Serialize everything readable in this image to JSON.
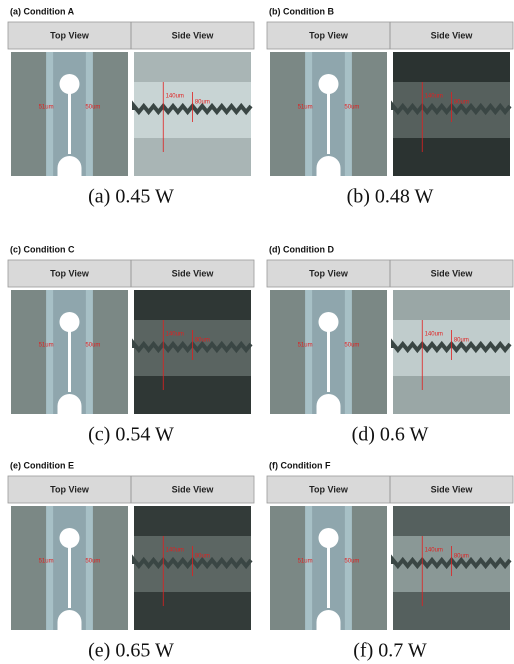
{
  "panels": [
    {
      "label": "(a) Condition  A",
      "top_header": "Top View",
      "side_header": "Side View",
      "top_labels": [
        "51um",
        "50um"
      ],
      "side_labels": [
        "140um",
        "80um"
      ],
      "caption": "(a)  0.45  W"
    },
    {
      "label": "(b) Condition  B",
      "top_header": "Top View",
      "side_header": "Side View",
      "top_labels": [
        "51um",
        "50um"
      ],
      "side_labels": [
        "140um",
        "80um"
      ],
      "caption": "(b)  0.48  W"
    },
    {
      "label": "(c) Condition  C",
      "top_header": "Top View",
      "side_header": "Side View",
      "top_labels": [
        "51um",
        "50um"
      ],
      "side_labels": [
        "140um",
        "80um"
      ],
      "caption": "(c)  0.54  W"
    },
    {
      "label": "(d) Condition  D",
      "top_header": "Top View",
      "side_header": "Side View",
      "top_labels": [
        "51um",
        "50um"
      ],
      "side_labels": [
        "140um",
        "80um"
      ],
      "caption": "(d)  0.6  W"
    },
    {
      "label": "(e) Condition  E",
      "top_header": "Top View",
      "side_header": "Side View",
      "top_labels": [
        "51um",
        "50um"
      ],
      "side_labels": [
        "140um",
        "80um"
      ],
      "caption": "(e)  0.65  W"
    },
    {
      "label": "(f) Condition  F",
      "top_header": "Top View",
      "side_header": "Side View",
      "top_labels": [
        "51um",
        "50um"
      ],
      "side_labels": [
        "140um",
        "80um"
      ],
      "caption": "(f)  0.7  W"
    }
  ]
}
